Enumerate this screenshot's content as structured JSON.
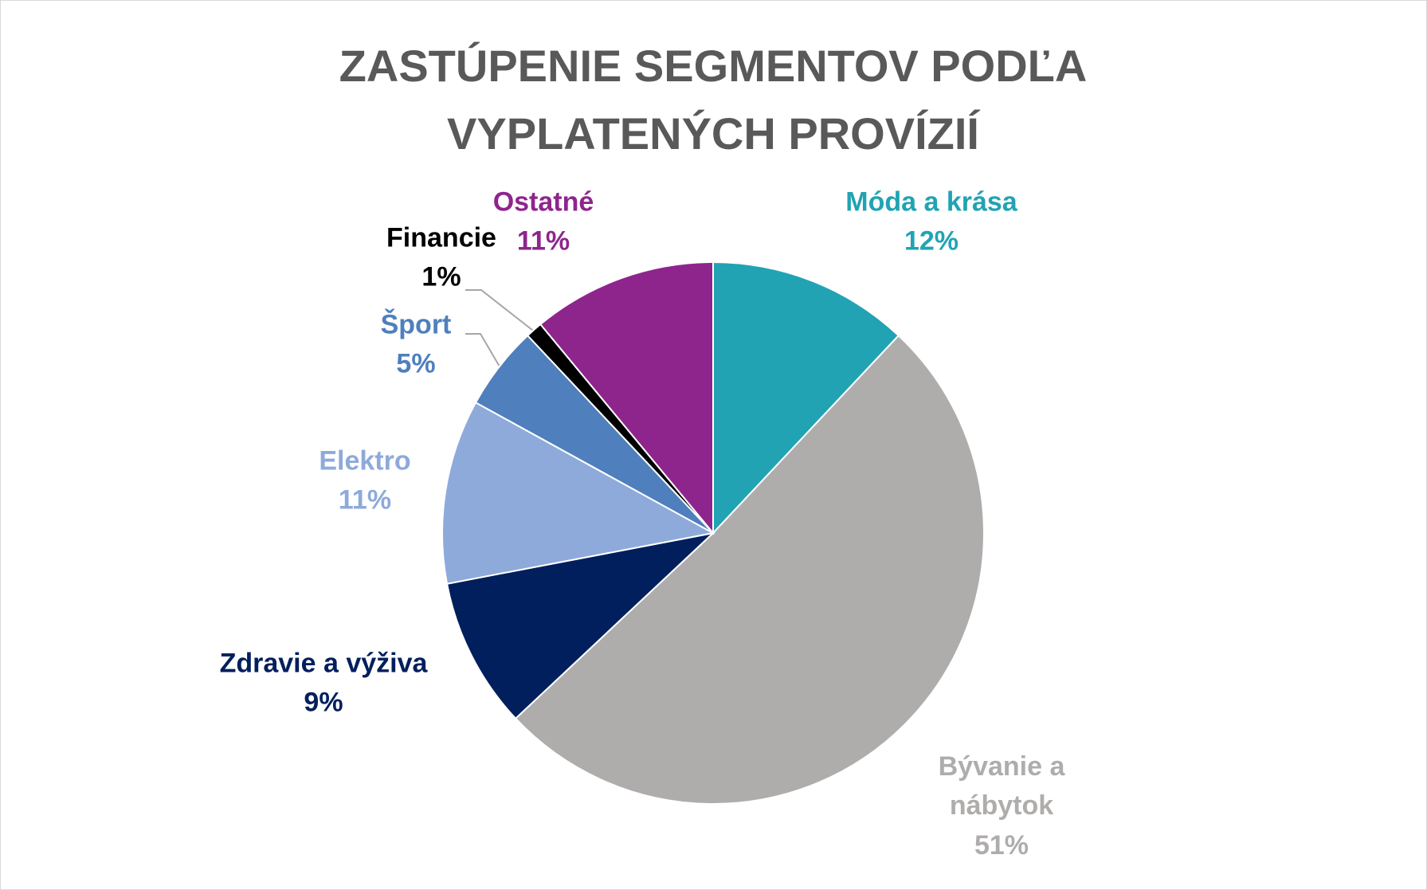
{
  "chart_data": {
    "type": "pie",
    "title": [
      "ZASTÚPENIE SEGMENTOV PODĽA",
      "VYPLATENÝCH PROVÍZIÍ"
    ],
    "categories": [
      "Móda a krása",
      "Bývanie a nábytok",
      "Zdravie a výživa",
      "Elektro",
      "Šport",
      "Financie",
      "Ostatné"
    ],
    "values": [
      12,
      51,
      9,
      11,
      5,
      1,
      11
    ],
    "value_labels": [
      "12%",
      "51%",
      "9%",
      "11%",
      "5%",
      "1%",
      "11%"
    ],
    "colors": [
      "#21a3b3",
      "#afadac",
      "#001f5c",
      "#8eaadb",
      "#4f7fbd",
      "#000000",
      "#8e258d"
    ]
  }
}
